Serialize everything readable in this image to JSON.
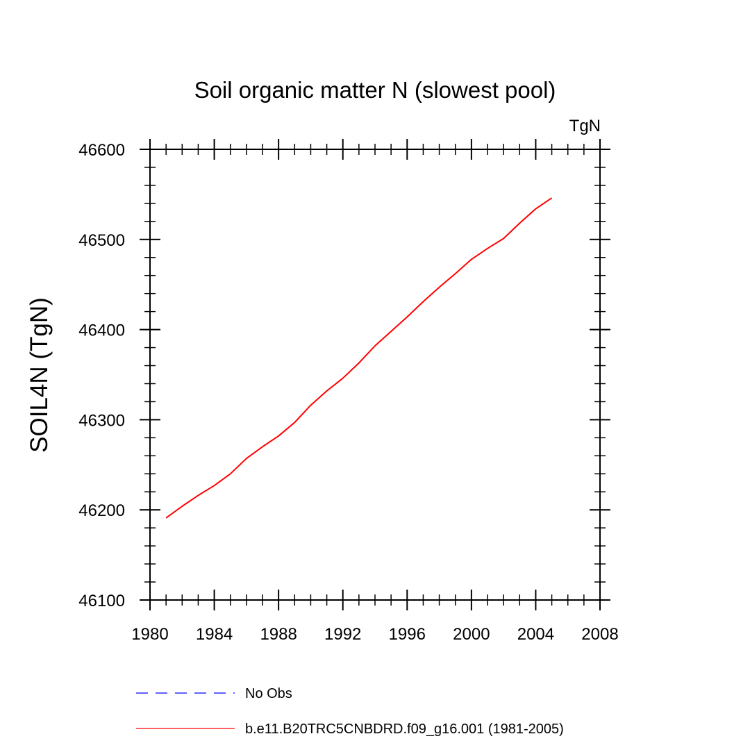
{
  "chart_data": {
    "type": "line",
    "title": "Soil organic matter N (slowest pool)",
    "units_label": "TgN",
    "xlabel": "",
    "ylabel": "SOIL4N  (TgN)",
    "xlim": [
      1980,
      2008
    ],
    "ylim": [
      46100,
      46600
    ],
    "x_ticks": [
      1980,
      1984,
      1988,
      1992,
      1996,
      2000,
      2004,
      2008
    ],
    "x_tick_labels": [
      "1980",
      "1984",
      "1988",
      "1992",
      "1996",
      "2000",
      "2004",
      "2008"
    ],
    "x_minor_step": 1,
    "y_ticks": [
      46100,
      46200,
      46300,
      46400,
      46500,
      46600
    ],
    "y_tick_labels": [
      "46100",
      "46200",
      "46300",
      "46400",
      "46500",
      "46600"
    ],
    "y_minor_step": 20,
    "grid": false,
    "legend_placement": "bottom",
    "series": [
      {
        "name": "No Obs",
        "color": "#0000ff",
        "dash": "dashed",
        "x": [],
        "y": []
      },
      {
        "name": "b.e11.B20TRC5CNBDRD.f09_g16.001 (1981-2005)",
        "color": "#ff0000",
        "dash": "solid",
        "x": [
          1981,
          1982,
          1983,
          1984,
          1985,
          1986,
          1987,
          1988,
          1989,
          1990,
          1991,
          1992,
          1993,
          1994,
          1995,
          1996,
          1997,
          1998,
          1999,
          2000,
          2001,
          2002,
          2003,
          2004,
          2005
        ],
        "y": [
          46191,
          46204,
          46216,
          46227,
          46240,
          46257,
          46270,
          46282,
          46297,
          46316,
          46332,
          46346,
          46363,
          46382,
          46398,
          46414,
          46431,
          46447,
          46462,
          46478,
          46490,
          46501,
          46518,
          46534,
          46546
        ]
      }
    ]
  }
}
